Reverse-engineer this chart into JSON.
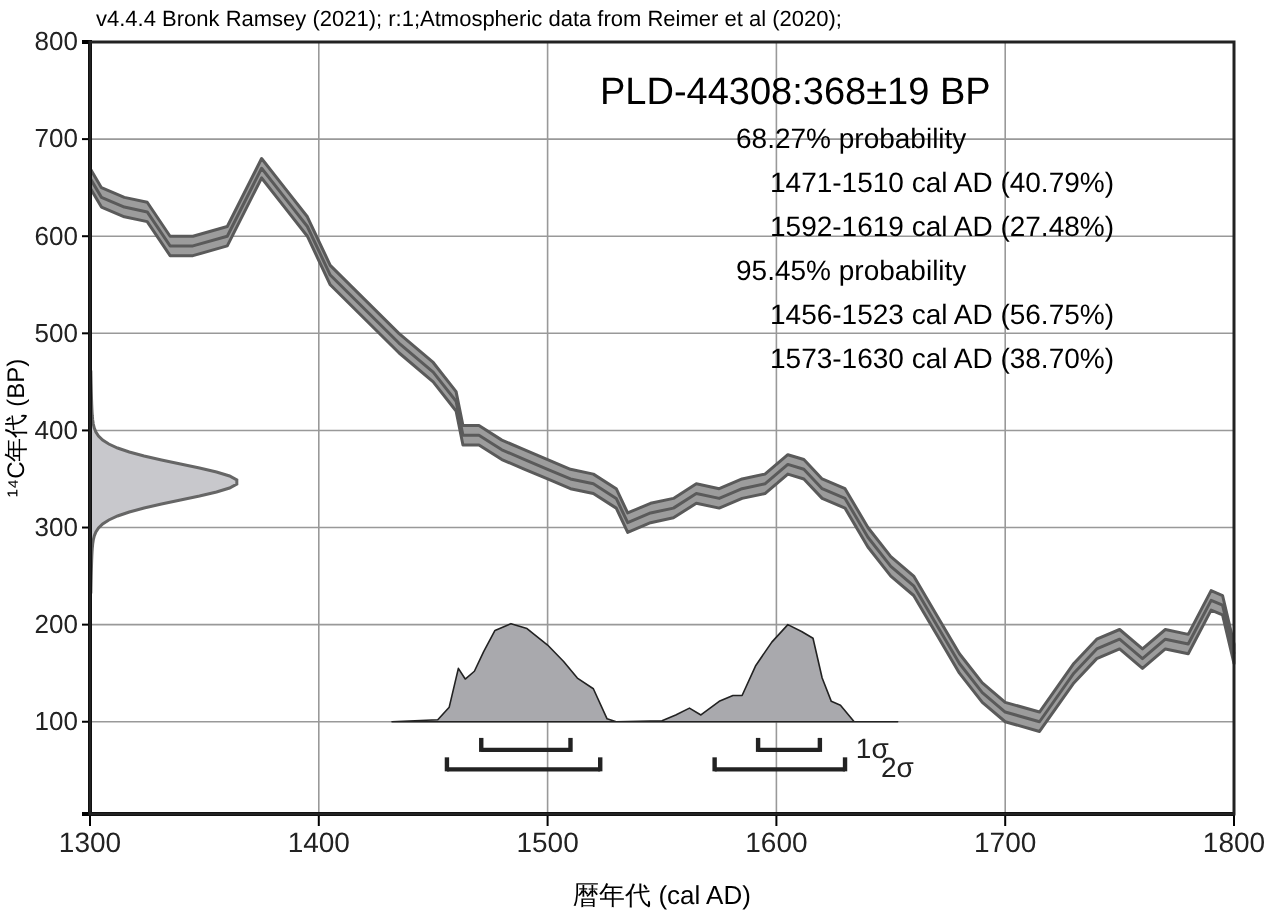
{
  "chart_data": {
    "type": "line",
    "title": "PLD-44308:368±19 BP",
    "annotations": [
      "v4.4.4 Bronk Ramsey (2021); r:1;Atmospheric data from Reimer et al (2020);",
      "68.27% probability",
      "1471-1510 cal AD (40.79%)",
      "1592-1619 cal AD (27.48%)",
      "95.45% probability",
      "1456-1523 cal AD (56.75%)",
      "1573-1630 cal AD (38.70%)"
    ],
    "xlabel": "暦年代 (cal AD)",
    "ylabel": "¹⁴C年代 (BP)",
    "xlim": [
      1300,
      1800
    ],
    "ylim": [
      5,
      800
    ],
    "xticks": [
      1300,
      1400,
      1500,
      1600,
      1700,
      1800
    ],
    "yticks": [
      100,
      200,
      300,
      400,
      500,
      600,
      700,
      800
    ],
    "grid": true,
    "series": [
      {
        "color": "#5a5a5a",
        "x": [
          1300,
          1305,
          1315,
          1325,
          1335,
          1345,
          1360,
          1375,
          1385,
          1395,
          1405,
          1420,
          1435,
          1450,
          1460,
          1463,
          1470,
          1480,
          1490,
          1500,
          1510,
          1520,
          1530,
          1535,
          1545,
          1555,
          1565,
          1575,
          1585,
          1595,
          1605,
          1612,
          1620,
          1630,
          1640,
          1650,
          1660,
          1670,
          1680,
          1690,
          1700,
          1715,
          1730,
          1740,
          1750,
          1760,
          1770,
          1780,
          1790,
          1795,
          1800
        ],
        "values": [
          660,
          640,
          630,
          625,
          590,
          590,
          600,
          670,
          640,
          610,
          560,
          525,
          490,
          460,
          430,
          395,
          395,
          380,
          370,
          360,
          350,
          345,
          330,
          305,
          315,
          320,
          335,
          330,
          340,
          345,
          365,
          360,
          340,
          330,
          290,
          260,
          240,
          200,
          160,
          130,
          110,
          100,
          150,
          175,
          185,
          165,
          185,
          180,
          225,
          220,
          170
        ],
        "lower": [
          650,
          630,
          620,
          615,
          580,
          580,
          590,
          660,
          630,
          600,
          550,
          515,
          480,
          450,
          420,
          385,
          385,
          370,
          360,
          350,
          340,
          335,
          320,
          295,
          305,
          310,
          325,
          320,
          330,
          335,
          355,
          350,
          330,
          320,
          280,
          250,
          230,
          190,
          150,
          120,
          100,
          90,
          140,
          165,
          175,
          155,
          175,
          170,
          215,
          210,
          160
        ],
        "upper": [
          670,
          650,
          640,
          635,
          600,
          600,
          610,
          680,
          650,
          620,
          570,
          535,
          500,
          470,
          440,
          405,
          405,
          390,
          380,
          370,
          360,
          355,
          340,
          315,
          325,
          330,
          345,
          340,
          350,
          355,
          375,
          370,
          350,
          340,
          300,
          270,
          250,
          210,
          170,
          140,
          120,
          110,
          160,
          185,
          195,
          175,
          195,
          190,
          235,
          230,
          180
        ]
      },
      {
        "type": "area",
        "color": "#a9a9ad",
        "x": [
          1432,
          1452,
          1457,
          1461,
          1464,
          1468,
          1472,
          1477,
          1484,
          1491,
          1500,
          1507,
          1513,
          1520,
          1526,
          1530,
          1550,
          1556,
          1562,
          1567,
          1575,
          1581,
          1585,
          1591,
          1598,
          1605,
          1611,
          1616,
          1620,
          1624,
          1628,
          1634,
          1653
        ],
        "values": [
          100,
          102,
          115,
          155,
          144,
          152,
          172,
          194,
          201,
          196,
          179,
          162,
          145,
          134,
          103,
          100,
          101,
          107,
          114,
          107,
          121,
          127,
          127,
          158,
          182,
          200,
          193,
          186,
          145,
          121,
          117,
          100,
          100
        ]
      },
      {
        "type": "line",
        "color": "#222222",
        "x": [
          1471,
          1510
        ],
        "values": [
          71,
          71
        ]
      },
      {
        "type": "line",
        "name": "1σ",
        "color": "#222222",
        "x": [
          1592,
          1619
        ],
        "values": [
          71,
          71
        ]
      },
      {
        "type": "line",
        "color": "#222222",
        "x": [
          1456,
          1523
        ],
        "values": [
          51,
          51
        ]
      },
      {
        "type": "line",
        "name": "2σ",
        "color": "#222222",
        "x": [
          1573,
          1630
        ],
        "values": [
          51,
          51
        ]
      }
    ]
  }
}
